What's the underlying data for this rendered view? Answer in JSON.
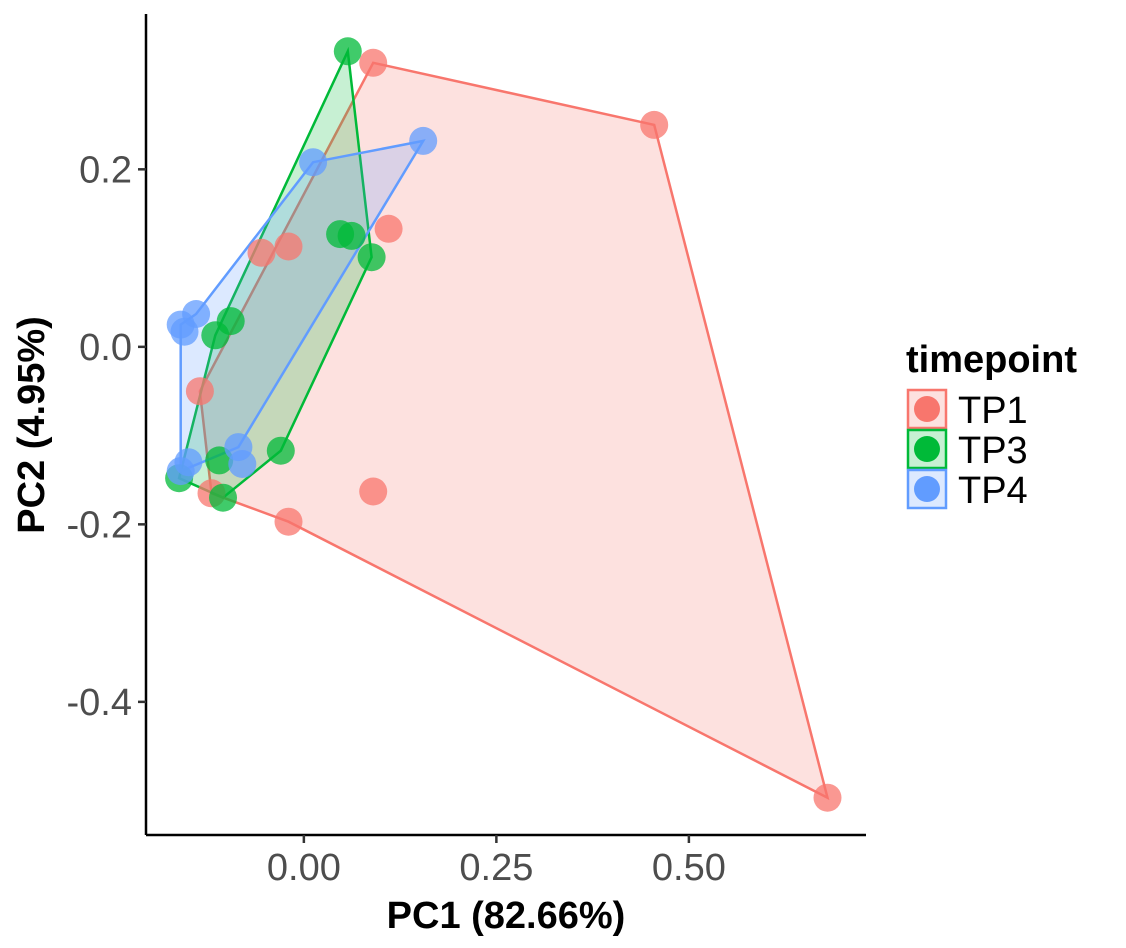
{
  "chart_data": {
    "type": "scatter",
    "xlabel": "PC1 (82.66%)",
    "ylabel": "PC2 (4.95%)",
    "xlim": [
      -0.205,
      0.73
    ],
    "ylim": [
      -0.55,
      0.375
    ],
    "xticks": [
      0.0,
      0.25,
      0.5
    ],
    "xtick_labels": [
      "0.00",
      "0.25",
      "0.50"
    ],
    "yticks": [
      -0.4,
      -0.2,
      0.0,
      0.2
    ],
    "ytick_labels": [
      "-0.4",
      "-0.2",
      "0.0",
      "0.2"
    ],
    "grid": false,
    "hulls": true,
    "legend": {
      "title": "timepoint",
      "position": "right"
    },
    "series": [
      {
        "name": "TP1",
        "color": "#F8766D",
        "points": [
          [
            0.09,
            0.32
          ],
          [
            0.455,
            0.25
          ],
          [
            0.11,
            0.133
          ],
          [
            -0.055,
            0.106
          ],
          [
            -0.02,
            0.113
          ],
          [
            -0.135,
            -0.05
          ],
          [
            -0.12,
            -0.165
          ],
          [
            -0.02,
            -0.197
          ],
          [
            0.09,
            -0.163
          ],
          [
            0.68,
            -0.508
          ]
        ],
        "hull": [
          [
            0.09,
            0.32
          ],
          [
            0.455,
            0.25
          ],
          [
            0.68,
            -0.508
          ],
          [
            -0.02,
            -0.197
          ],
          [
            -0.12,
            -0.165
          ],
          [
            -0.135,
            -0.05
          ]
        ]
      },
      {
        "name": "TP3",
        "color": "#00BA38",
        "points": [
          [
            0.057,
            0.333
          ],
          [
            0.047,
            0.127
          ],
          [
            0.062,
            0.125
          ],
          [
            0.088,
            0.101
          ],
          [
            -0.095,
            0.029
          ],
          [
            -0.115,
            0.013
          ],
          [
            -0.03,
            -0.117
          ],
          [
            -0.11,
            -0.128
          ],
          [
            -0.105,
            -0.17
          ],
          [
            -0.162,
            -0.148
          ]
        ],
        "hull": [
          [
            0.057,
            0.333
          ],
          [
            0.088,
            0.101
          ],
          [
            -0.03,
            -0.117
          ],
          [
            -0.105,
            -0.17
          ],
          [
            -0.162,
            -0.148
          ],
          [
            -0.115,
            0.013
          ]
        ]
      },
      {
        "name": "TP4",
        "color": "#619CFF",
        "points": [
          [
            0.155,
            0.232
          ],
          [
            0.012,
            0.208
          ],
          [
            -0.14,
            0.037
          ],
          [
            -0.16,
            0.025
          ],
          [
            -0.155,
            0.017
          ],
          [
            -0.085,
            -0.113
          ],
          [
            -0.08,
            -0.132
          ],
          [
            -0.15,
            -0.13
          ],
          [
            -0.16,
            -0.14
          ]
        ],
        "hull": [
          [
            0.155,
            0.232
          ],
          [
            -0.085,
            -0.113
          ],
          [
            -0.16,
            -0.14
          ],
          [
            -0.16,
            0.025
          ],
          [
            -0.14,
            0.037
          ],
          [
            0.012,
            0.208
          ]
        ]
      }
    ]
  }
}
